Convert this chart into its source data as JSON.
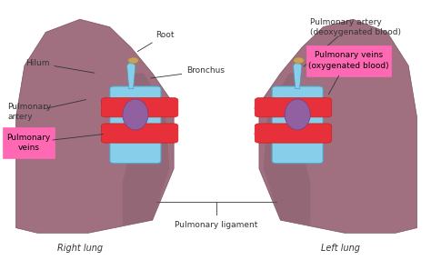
{
  "background_color": "#ffffff",
  "figure_width": 4.74,
  "figure_height": 2.86,
  "lung_color": "#a07080",
  "lung_shadow_color": "#8a5f6f",
  "hilum_color": "#87ceeb",
  "vessel_red_color": "#e8303a",
  "highlight_box_color": "#ff69b4",
  "text_color": "#333333",
  "labels": {
    "hilum": "Hilum",
    "root": "Root",
    "bronchus": "Bronchus",
    "pulmonary_artery_left": "Pulmonary\nartery",
    "pulmonary_veins_left": "Pulmonary\nveins",
    "pulmonary_artery_right_box": "Pulmonary artery\n(deoxygenated blood)",
    "pulmonary_veins_right_box": "Pulmonary veins\n(oxygenated blood)",
    "pulmonary_ligament": "Pulmonary ligament",
    "right_lung": "Right lung",
    "left_lung": "Left lung"
  }
}
